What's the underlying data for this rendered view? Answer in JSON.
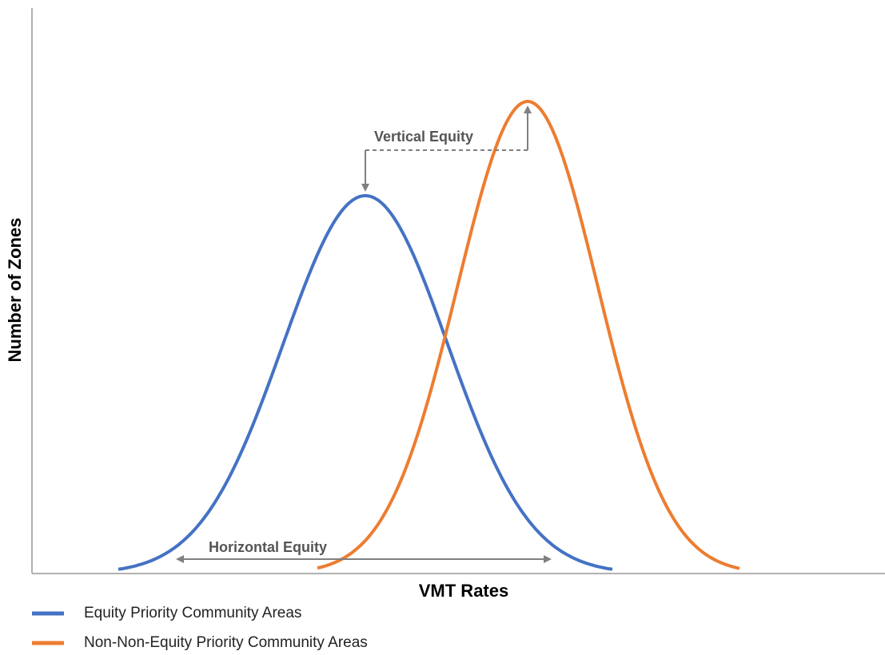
{
  "axes": {
    "x_label": "VMT Rates",
    "y_label": "Number of Zones"
  },
  "annotations": {
    "vertical": "Vertical Equity",
    "horizontal": "Horizontal Equity"
  },
  "legend": [
    "Equity Priority Community Areas",
    "Non-Non-Equity Priority Community Areas"
  ]
}
